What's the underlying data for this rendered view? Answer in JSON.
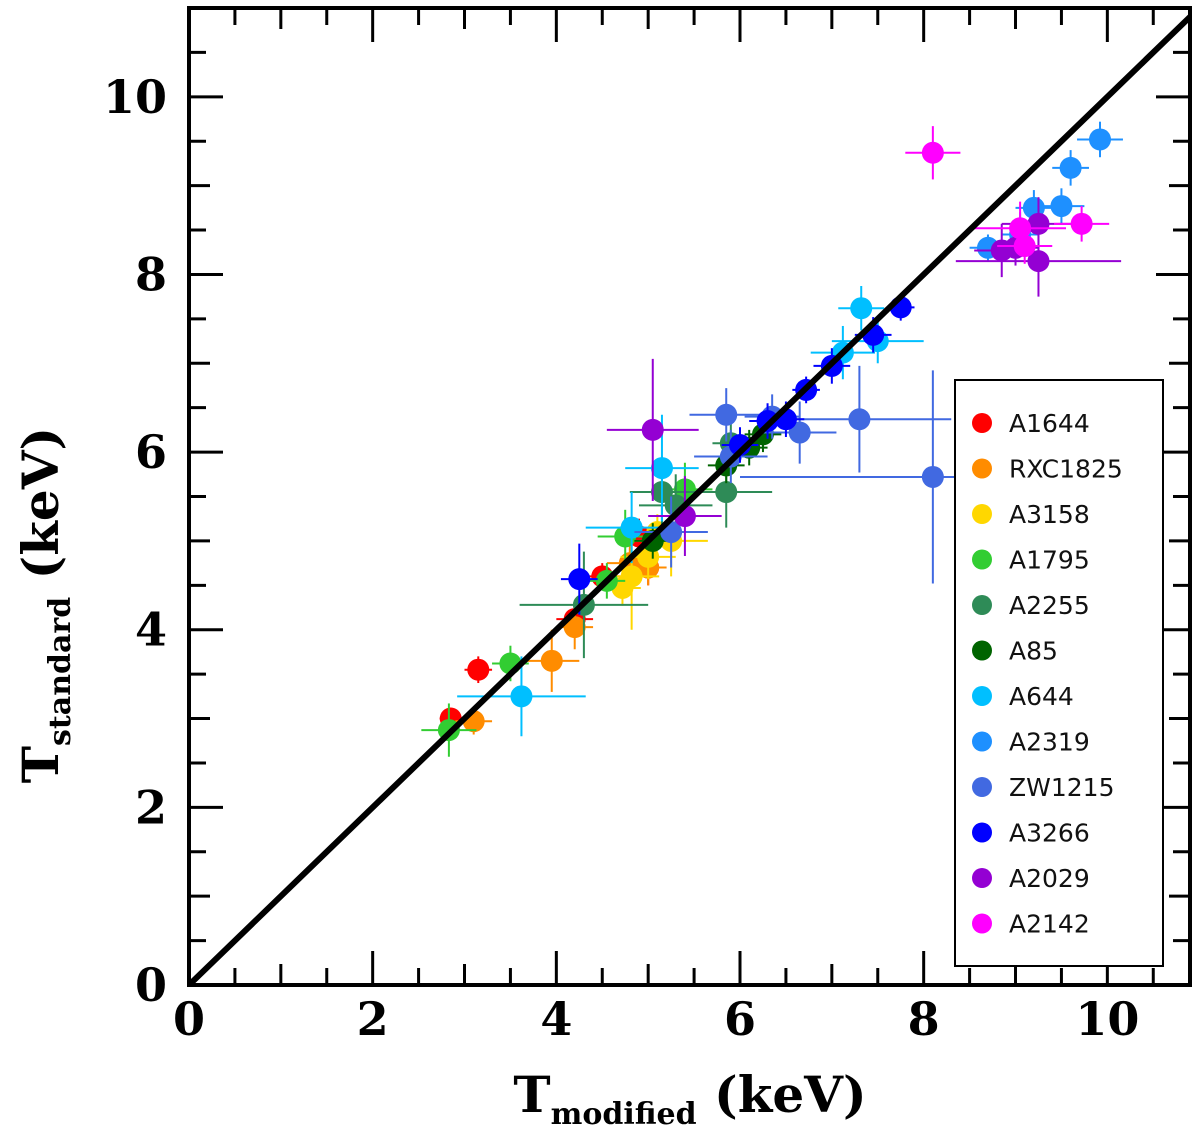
{
  "chart_data": {
    "type": "scatter",
    "title": "",
    "xlabel": {
      "main": "T",
      "sub": "modified",
      "unit": " (keV)"
    },
    "ylabel": {
      "main": "T",
      "sub": "standard",
      "unit": " (keV)"
    },
    "xlim": [
      0,
      10.9
    ],
    "ylim": [
      0,
      11.0
    ],
    "x_ticks": [
      "0",
      "2",
      "4",
      "6",
      "8",
      "10"
    ],
    "y_ticks": [
      "0",
      "2",
      "4",
      "6",
      "8",
      "10"
    ],
    "grid": false,
    "reference_line": "y = x",
    "legend_position": "right",
    "series": [
      {
        "name": "A1644",
        "color": "#ff0000",
        "points": [
          [
            2.85,
            3.0,
            0.12,
            0.12
          ],
          [
            3.15,
            3.55,
            0.15,
            0.15
          ],
          [
            4.5,
            4.6,
            0.2,
            0.15
          ],
          [
            4.2,
            4.12,
            0.2,
            0.15
          ],
          [
            5.0,
            4.7,
            0.2,
            0.2
          ],
          [
            4.9,
            5.05,
            0.2,
            0.2
          ]
        ]
      },
      {
        "name": "RXC1825",
        "color": "#ff8c00",
        "points": [
          [
            3.1,
            2.97,
            0.2,
            0.15
          ],
          [
            3.95,
            3.65,
            0.3,
            0.35
          ],
          [
            4.2,
            4.03,
            0.2,
            0.25
          ],
          [
            4.8,
            4.75,
            0.25,
            0.2
          ],
          [
            5.0,
            4.7,
            0.2,
            0.2
          ]
        ]
      },
      {
        "name": "A3158",
        "color": "#ffd700",
        "points": [
          [
            4.72,
            4.47,
            0.2,
            0.2
          ],
          [
            4.82,
            4.6,
            0.3,
            0.6
          ],
          [
            5.0,
            4.82,
            0.3,
            0.25
          ],
          [
            5.25,
            5.0,
            0.4,
            0.4
          ],
          [
            5.1,
            5.1,
            0.2,
            0.2
          ]
        ]
      },
      {
        "name": "A1795",
        "color": "#32cd32",
        "points": [
          [
            2.83,
            2.87,
            0.3,
            0.3
          ],
          [
            3.5,
            3.62,
            0.2,
            0.2
          ],
          [
            4.55,
            4.55,
            0.2,
            0.2
          ],
          [
            4.75,
            5.05,
            0.3,
            0.3
          ],
          [
            5.4,
            5.58,
            0.3,
            0.3
          ]
        ]
      },
      {
        "name": "A2255",
        "color": "#2e8b57",
        "points": [
          [
            4.3,
            4.28,
            0.7,
            0.6
          ],
          [
            5.15,
            5.55,
            0.35,
            0.4
          ],
          [
            5.3,
            5.4,
            0.4,
            0.35
          ],
          [
            5.85,
            5.55,
            0.5,
            0.4
          ],
          [
            5.9,
            6.1,
            0.2,
            0.25
          ]
        ]
      },
      {
        "name": "A85",
        "color": "#006400",
        "points": [
          [
            5.05,
            5.0,
            0.2,
            0.2
          ],
          [
            5.85,
            5.85,
            0.2,
            0.2
          ],
          [
            6.1,
            6.05,
            0.2,
            0.2
          ],
          [
            6.25,
            6.2,
            0.2,
            0.2
          ]
        ]
      },
      {
        "name": "A644",
        "color": "#00bfff",
        "points": [
          [
            3.62,
            3.25,
            0.7,
            0.45
          ],
          [
            4.82,
            5.15,
            0.5,
            0.4
          ],
          [
            5.15,
            5.82,
            0.4,
            0.6
          ],
          [
            7.12,
            7.12,
            0.35,
            0.3
          ],
          [
            7.32,
            7.62,
            0.25,
            0.25
          ],
          [
            7.5,
            7.25,
            0.5,
            0.25
          ]
        ]
      },
      {
        "name": "A2319",
        "color": "#1e90ff",
        "points": [
          [
            8.7,
            8.3,
            0.2,
            0.15
          ],
          [
            9.2,
            8.75,
            0.2,
            0.2
          ],
          [
            9.5,
            8.77,
            0.25,
            0.2
          ],
          [
            9.6,
            9.2,
            0.2,
            0.2
          ],
          [
            9.92,
            9.52,
            0.25,
            0.2
          ],
          [
            9.05,
            8.45,
            0.2,
            0.25
          ]
        ]
      },
      {
        "name": "ZW1215",
        "color": "#4169e1",
        "points": [
          [
            5.25,
            5.1,
            0.4,
            0.4
          ],
          [
            5.9,
            5.95,
            0.4,
            0.3
          ],
          [
            5.85,
            6.42,
            0.4,
            0.3
          ],
          [
            6.35,
            6.4,
            0.3,
            0.25
          ],
          [
            6.65,
            6.22,
            0.4,
            0.35
          ],
          [
            7.3,
            6.37,
            1.0,
            0.6
          ],
          [
            8.1,
            5.72,
            2.1,
            1.2
          ]
        ]
      },
      {
        "name": "A3266",
        "color": "#0000ff",
        "points": [
          [
            4.25,
            4.57,
            0.2,
            0.4
          ],
          [
            6.0,
            6.08,
            0.2,
            0.2
          ],
          [
            6.3,
            6.35,
            0.2,
            0.2
          ],
          [
            6.5,
            6.37,
            0.2,
            0.2
          ],
          [
            6.72,
            6.7,
            0.15,
            0.15
          ],
          [
            7.0,
            6.97,
            0.2,
            0.2
          ],
          [
            7.45,
            7.32,
            0.2,
            0.2
          ],
          [
            7.75,
            7.63,
            0.15,
            0.15
          ]
        ]
      },
      {
        "name": "A2029",
        "color": "#9400d3",
        "points": [
          [
            5.05,
            6.25,
            0.5,
            0.8
          ],
          [
            5.4,
            5.28,
            0.4,
            0.45
          ],
          [
            8.85,
            8.27,
            0.3,
            0.3
          ],
          [
            9.25,
            8.15,
            0.9,
            0.4
          ],
          [
            9.25,
            8.57,
            0.4,
            0.3
          ],
          [
            9.0,
            8.3,
            0.25,
            0.2
          ]
        ]
      },
      {
        "name": "A2142",
        "color": "#ff00ff",
        "points": [
          [
            8.1,
            9.37,
            0.3,
            0.3
          ],
          [
            9.05,
            8.52,
            0.5,
            0.3
          ],
          [
            9.1,
            8.32,
            0.3,
            0.2
          ],
          [
            9.72,
            8.57,
            0.3,
            0.2
          ]
        ]
      }
    ]
  }
}
